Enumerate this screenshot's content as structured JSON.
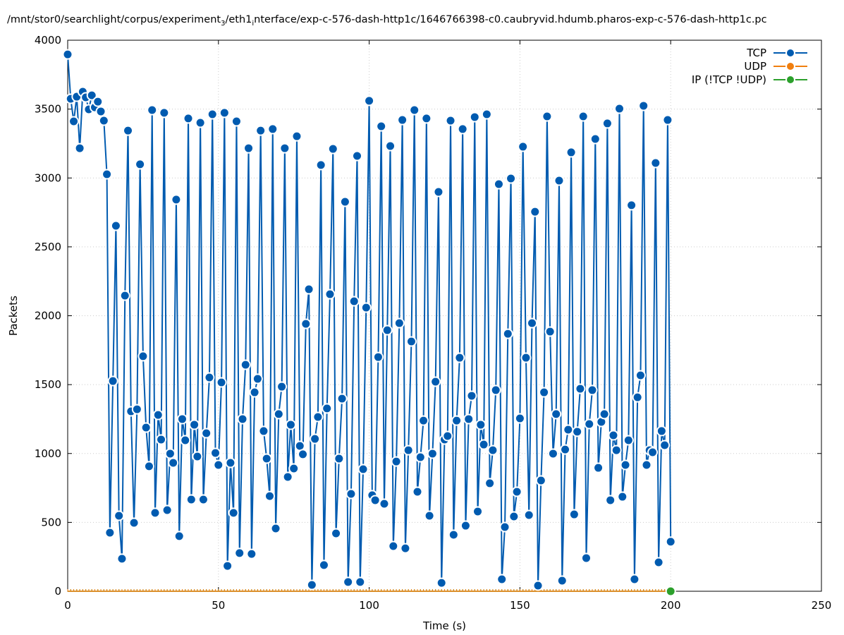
{
  "chart_data": {
    "type": "line",
    "title_parts": [
      "/mnt/stor0/searchlight/corpus/experiment",
      "3",
      "/eth1",
      "i",
      "nterface/exp-c-576-dash-http1c/1646766398-c0.caubryvid.hdumb.pharos-exp-c-576-dash-http1c.pc"
    ],
    "xlabel": "Time (s)",
    "ylabel": "Packets",
    "xlim": [
      0,
      250
    ],
    "ylim": [
      0,
      4000
    ],
    "xticks": [
      0,
      50,
      100,
      150,
      200,
      250
    ],
    "yticks": [
      0,
      500,
      1000,
      1500,
      2000,
      2500,
      3000,
      3500,
      4000
    ],
    "grid": true,
    "legend_position": "top-right",
    "series": [
      {
        "name": "TCP",
        "color": "#005bb0",
        "values": [
          3897,
          3575,
          3411,
          3590,
          3216,
          3626,
          3585,
          3498,
          3600,
          3513,
          3554,
          3483,
          3416,
          3027,
          425,
          1526,
          2653,
          548,
          236,
          2146,
          3344,
          1306,
          497,
          1321,
          3099,
          1706,
          1188,
          907,
          3493,
          569,
          1280,
          1101,
          3473,
          589,
          999,
          932,
          2843,
          400,
          1250,
          1096,
          3432,
          666,
          1209,
          978,
          3401,
          666,
          1147,
          1552,
          3462,
          1004,
          917,
          1516,
          3473,
          184,
          932,
          569,
          3411,
          277,
          1250,
          1644,
          3216,
          271,
          1444,
          1542,
          3344,
          1163,
          963,
          691,
          3355,
          456,
          1286,
          1485,
          3216,
          830,
          1209,
          891,
          3303,
          1055,
          994,
          1941,
          2192,
          46,
          1106,
          1265,
          3094,
          190,
          1327,
          2156,
          3211,
          420,
          963,
          1398,
          2827,
          67,
          707,
          2105,
          3160,
          67,
          886,
          2059,
          3560,
          697,
          661,
          1700,
          3375,
          635,
          1895,
          3232,
          328,
          942,
          1946,
          3421,
          312,
          1024,
          1813,
          3493,
          722,
          973,
          1239,
          3432,
          548,
          999,
          1521,
          2899,
          61,
          1101,
          1127,
          3416,
          410,
          1239,
          1695,
          3355,
          476,
          1250,
          1419,
          3442,
          579,
          1209,
          1065,
          3462,
          784,
          1024,
          1460,
          2955,
          87,
          466,
          1869,
          2996,
          543,
          722,
          1255,
          3227,
          1695,
          553,
          1946,
          2755,
          41,
          804,
          1444,
          3447,
          1885,
          999,
          1286,
          2981,
          77,
          1029,
          1173,
          3186,
          558,
          1158,
          1470,
          3447,
          241,
          1214,
          1460,
          3283,
          896,
          1229,
          1286,
          3396,
          661,
          1132,
          1024,
          3503,
          686,
          917,
          1096,
          2802,
          87,
          1408,
          1567,
          3524,
          917,
          1024,
          1009,
          3109,
          210,
          1163,
          1060,
          3421,
          360
        ]
      },
      {
        "name": "UDP",
        "color": "#f07f0f",
        "values": "zeros"
      },
      {
        "name": "IP (!TCP  !UDP)",
        "color": "#2ca02c",
        "values": "zeros"
      }
    ]
  }
}
